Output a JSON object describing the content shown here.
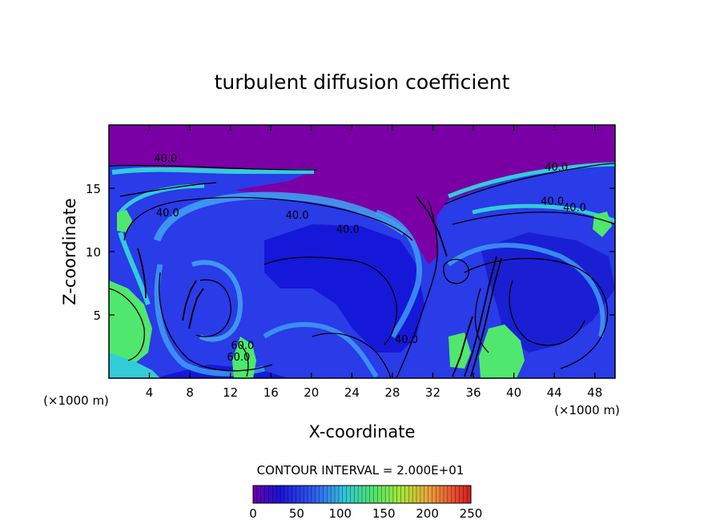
{
  "chart_data": {
    "type": "heatmap",
    "title": "turbulent diffusion coefficient",
    "xlabel": "X-coordinate",
    "ylabel": "Z-coordinate",
    "x_unit": "(×1000 m)",
    "z_unit": "(×1000 m)",
    "xlim": [
      0,
      50
    ],
    "ylim": [
      0,
      20
    ],
    "x_ticks": [
      4,
      8,
      12,
      16,
      20,
      24,
      28,
      32,
      36,
      40,
      44,
      48
    ],
    "y_ticks": [
      5,
      10,
      15
    ],
    "contour_interval_text": "CONTOUR INTERVAL = 2.000E+01",
    "contour_interval": 20,
    "contour_labels": [
      {
        "text": "40.0",
        "x": 5.6,
        "z": 17.1
      },
      {
        "text": "40.0",
        "x": 18.6,
        "z": 12.6
      },
      {
        "text": "40.0",
        "x": 23.6,
        "z": 11.5
      },
      {
        "text": "40.0",
        "x": 44.2,
        "z": 16.4
      },
      {
        "text": "40.0",
        "x": 43.8,
        "z": 13.7
      },
      {
        "text": "40.0",
        "x": 46.0,
        "z": 13.2
      },
      {
        "text": "40.0",
        "x": 5.8,
        "z": 12.8
      },
      {
        "text": "40.0",
        "x": 29.4,
        "z": 2.8
      },
      {
        "text": "60.0",
        "x": 12.8,
        "z": 1.4
      },
      {
        "text": "60.0",
        "x": 13.2,
        "z": 2.3
      }
    ],
    "colorbar": {
      "min": 0,
      "max": 250,
      "ticks": [
        "0",
        "50",
        "100",
        "150",
        "200",
        "250"
      ]
    },
    "colors": {
      "background_purple": "#7a00a6",
      "deep_blue": "#1518d8",
      "blue": "#2e49f0",
      "light_blue": "#3fa4f5",
      "cyan": "#33ccd8",
      "green": "#4fe76e",
      "contour": "#000000"
    }
  }
}
